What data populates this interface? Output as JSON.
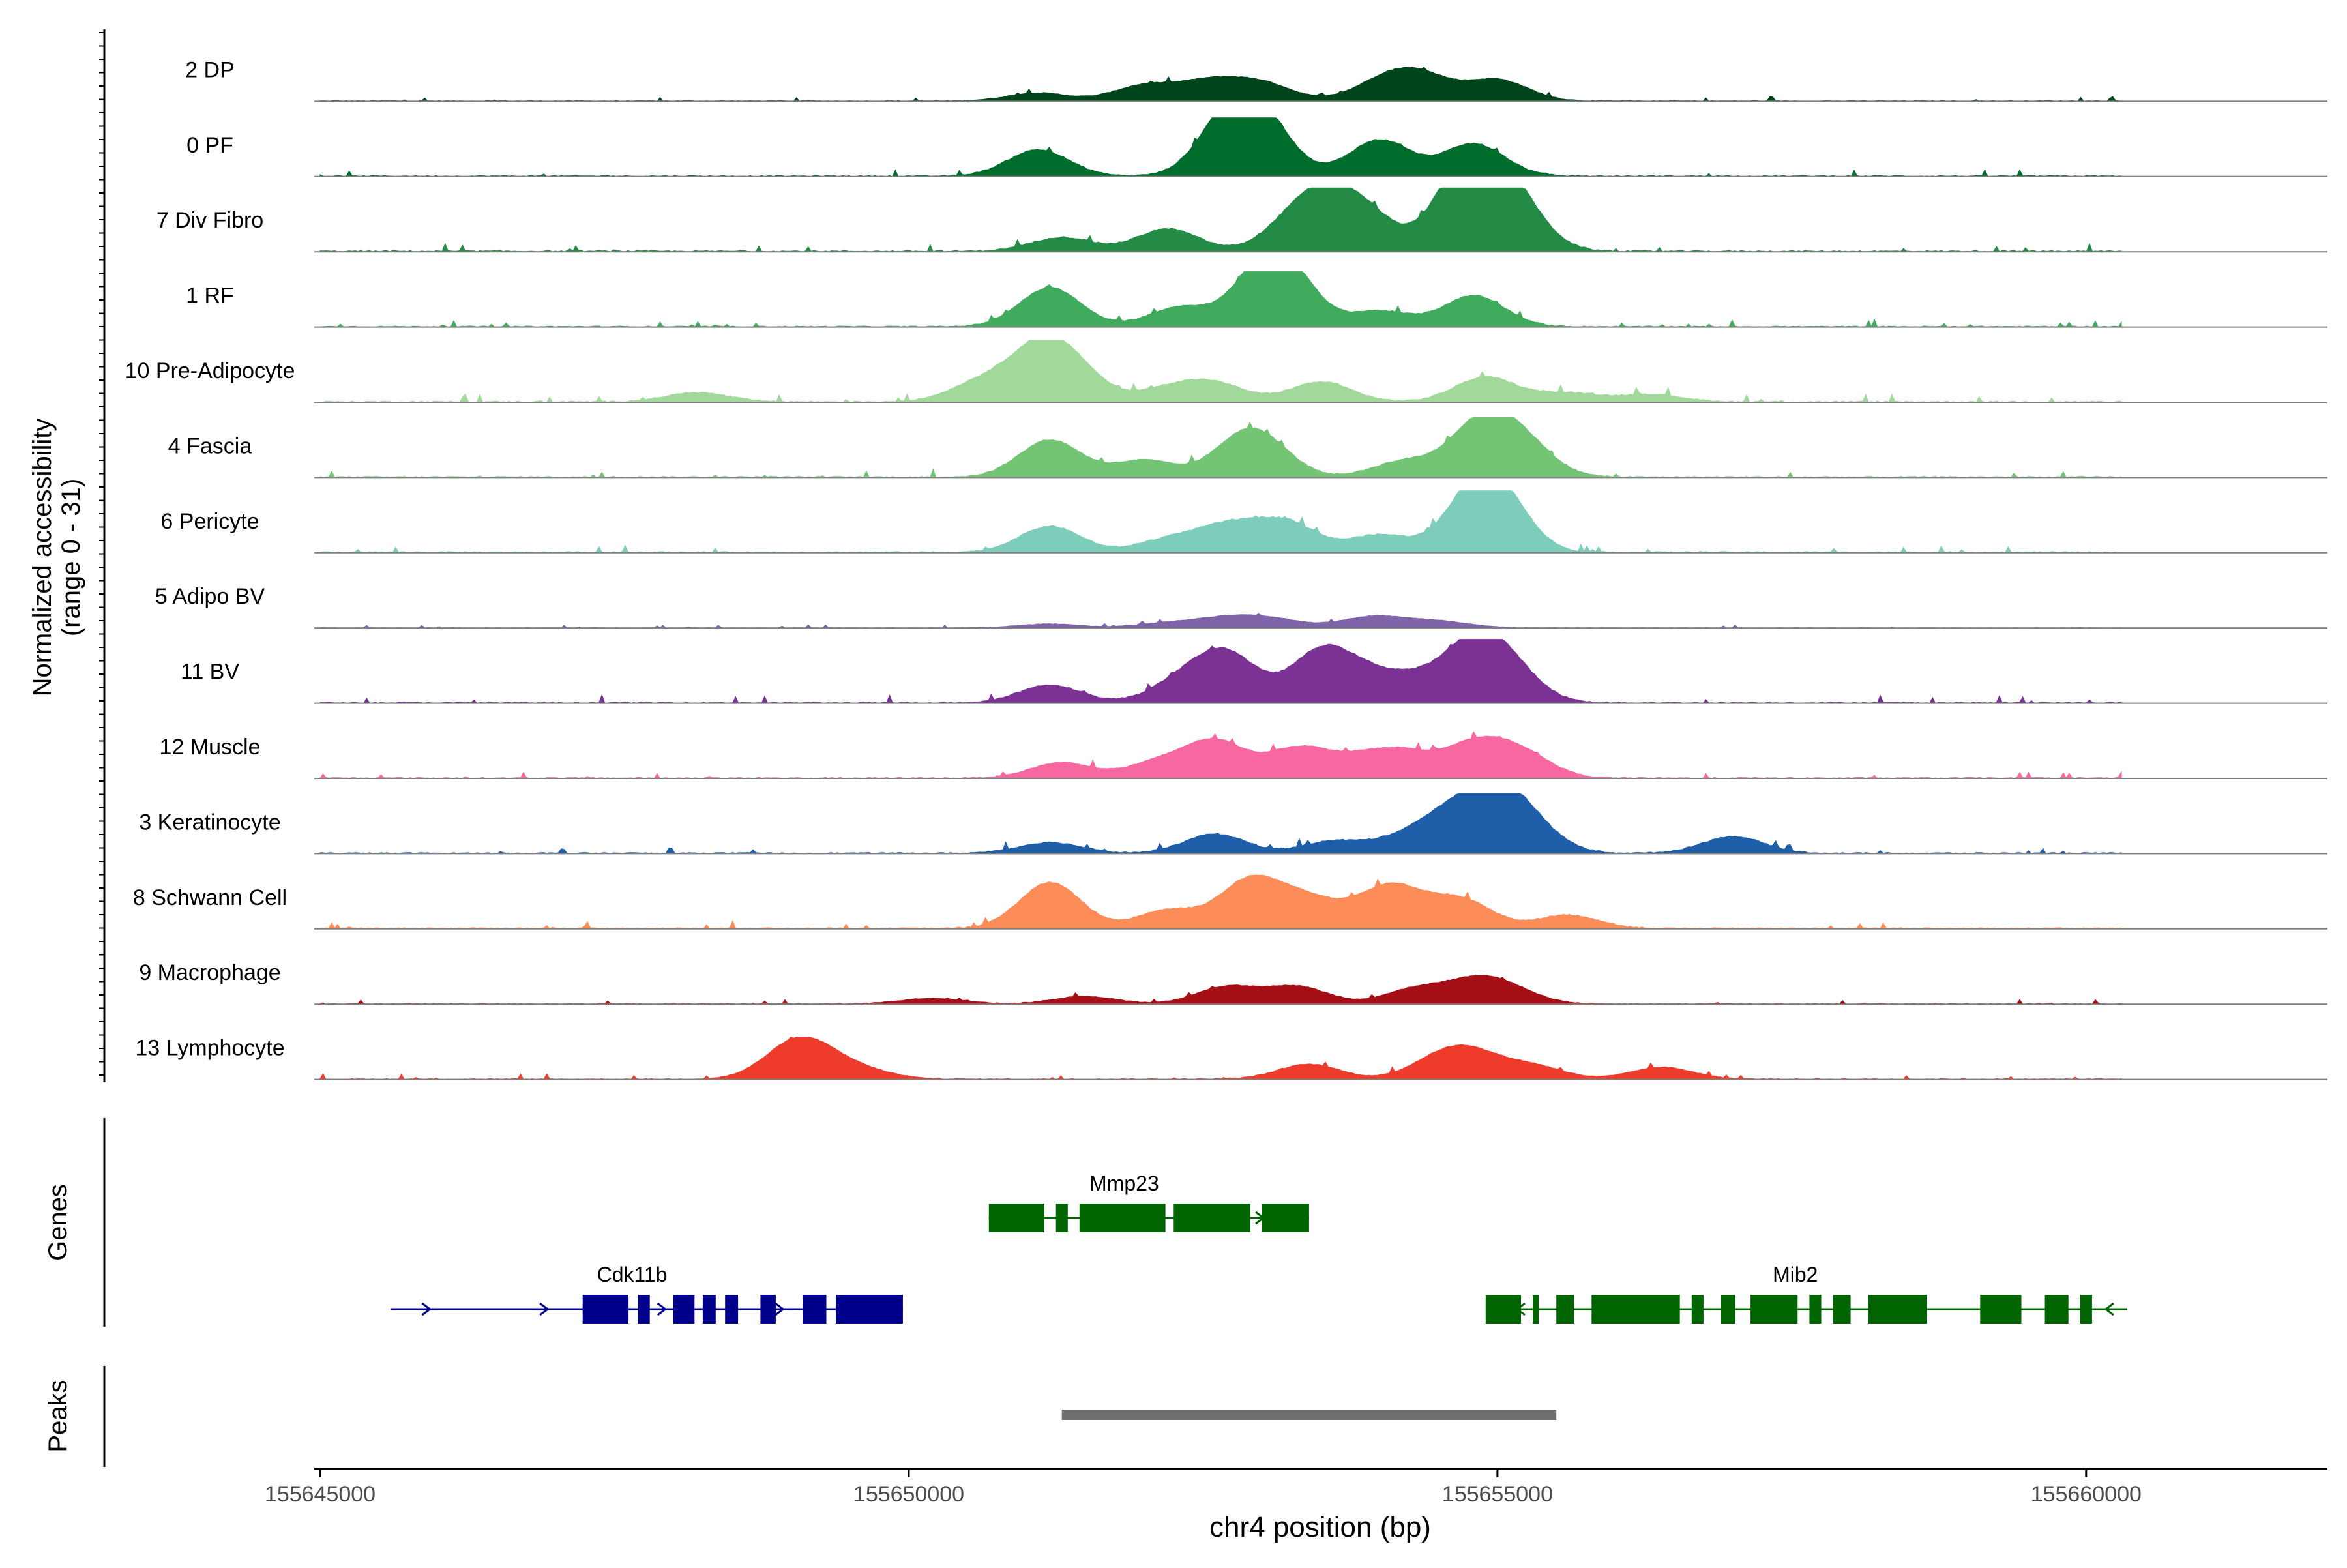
{
  "chart_data": {
    "type": "area",
    "title": "",
    "y_axis_label_line1": "Normalized accessibility",
    "y_axis_label_line2": "(range 0 - 31)",
    "genes_panel_label": "Genes",
    "peaks_panel_label": "Peaks",
    "xlabel": "chr4 position (bp)",
    "xlim": [
      155644950,
      155662050
    ],
    "x_ticks": [
      155645000,
      155650000,
      155655000,
      155660000
    ],
    "x_tick_labels": [
      "155645000",
      "155650000",
      "155655000",
      "155660000"
    ],
    "tracks": [
      {
        "name": "2 DP",
        "color": "#00441b",
        "max": 0.62,
        "peaks": [
          [
            155655000,
            0.52
          ],
          [
            155652000,
            0.38
          ],
          [
            155653000,
            0.42
          ],
          [
            155654000,
            0.36
          ],
          [
            155654400,
            0.35
          ],
          [
            155652550,
            0.45
          ],
          [
            155651100,
            0.2
          ],
          [
            155654250,
            0.3
          ]
        ]
      },
      {
        "name": "0 PF",
        "color": "#006d2c",
        "max": 0.9,
        "peaks": [
          [
            155653000,
            0.75
          ],
          [
            155654000,
            0.62
          ],
          [
            155654800,
            0.55
          ],
          [
            155652700,
            0.6
          ],
          [
            155651100,
            0.45
          ],
          [
            155652800,
            0.4
          ]
        ]
      },
      {
        "name": "7 Div Fibro",
        "color": "#238b45",
        "max": 0.98,
        "peaks": [
          [
            155654850,
            0.85
          ],
          [
            155654700,
            0.76
          ],
          [
            155655150,
            0.65
          ],
          [
            155653600,
            0.6
          ],
          [
            155652200,
            0.35
          ],
          [
            155653300,
            0.5
          ],
          [
            155653900,
            0.45
          ],
          [
            155651300,
            0.22
          ]
        ]
      },
      {
        "name": "1 RF",
        "color": "#41ab5d",
        "max": 0.85,
        "peaks": [
          [
            155653200,
            0.8
          ],
          [
            155653000,
            0.75
          ],
          [
            155651200,
            0.7
          ],
          [
            155654800,
            0.56
          ],
          [
            155652300,
            0.35
          ],
          [
            155654000,
            0.28
          ]
        ]
      },
      {
        "name": "10 Pre-Adipocyte",
        "color": "#a1d99b",
        "max": 0.95,
        "peaks": [
          [
            155651100,
            0.78
          ],
          [
            155651400,
            0.45
          ],
          [
            155654900,
            0.4
          ],
          [
            155653500,
            0.32
          ],
          [
            155650600,
            0.3
          ],
          [
            155652600,
            0.28
          ],
          [
            155652200,
            0.2
          ],
          [
            155648200,
            0.15
          ],
          [
            155655600,
            0.14
          ],
          [
            155656300,
            0.12
          ]
        ]
      },
      {
        "name": "4 Fascia",
        "color": "#74c476",
        "max": 0.92,
        "peaks": [
          [
            155654850,
            0.85
          ],
          [
            155655200,
            0.55
          ],
          [
            155653000,
            0.48
          ],
          [
            155651200,
            0.62
          ],
          [
            155652800,
            0.4
          ],
          [
            155652000,
            0.28
          ],
          [
            155654200,
            0.26
          ]
        ]
      },
      {
        "name": "6 Pericyte",
        "color": "#7ecdbb",
        "max": 0.95,
        "peaks": [
          [
            155655000,
            0.78
          ],
          [
            155654800,
            0.7
          ],
          [
            155653200,
            0.48
          ],
          [
            155651200,
            0.42
          ],
          [
            155652700,
            0.4
          ],
          [
            155654000,
            0.28
          ],
          [
            155652200,
            0.2
          ]
        ]
      },
      {
        "name": "5 Adipo BV",
        "color": "#8064aa",
        "max": 0.4,
        "peaks": [
          [
            155652700,
            0.35
          ],
          [
            155653100,
            0.3
          ],
          [
            155653900,
            0.24
          ],
          [
            155654500,
            0.25
          ],
          [
            155654000,
            0.2
          ],
          [
            155652200,
            0.18
          ],
          [
            155651200,
            0.15
          ]
        ]
      },
      {
        "name": "11 BV",
        "color": "#7b3294",
        "max": 0.98,
        "peaks": [
          [
            155654800,
            0.85
          ],
          [
            155653500,
            0.78
          ],
          [
            155652700,
            0.75
          ],
          [
            155655100,
            0.45
          ],
          [
            155653900,
            0.32
          ],
          [
            155652300,
            0.3
          ],
          [
            155654300,
            0.3
          ],
          [
            155651200,
            0.28
          ]
        ]
      },
      {
        "name": "12 Muscle",
        "color": "#f768a1",
        "max": 0.8,
        "peaks": [
          [
            155652600,
            0.7
          ],
          [
            155653300,
            0.55
          ],
          [
            155654800,
            0.6
          ],
          [
            155654200,
            0.45
          ],
          [
            155655200,
            0.45
          ],
          [
            155651300,
            0.3
          ],
          [
            155652100,
            0.28
          ],
          [
            155653800,
            0.3
          ]
        ]
      },
      {
        "name": "3 Keratinocyte",
        "color": "#1f5ea8",
        "max": 0.92,
        "peaks": [
          [
            155655000,
            0.92
          ],
          [
            155654600,
            0.55
          ],
          [
            155652600,
            0.32
          ],
          [
            155651200,
            0.18
          ],
          [
            155657000,
            0.28
          ],
          [
            155655300,
            0.3
          ],
          [
            155653600,
            0.2
          ],
          [
            155654200,
            0.22
          ]
        ]
      },
      {
        "name": "8 Schwann Cell",
        "color": "#fc8d59",
        "max": 0.94,
        "peaks": [
          [
            155651200,
            0.75
          ],
          [
            155652900,
            0.78
          ],
          [
            155653400,
            0.45
          ],
          [
            155654000,
            0.4
          ],
          [
            155654700,
            0.45
          ],
          [
            155654200,
            0.35
          ],
          [
            155652200,
            0.3
          ],
          [
            155655600,
            0.22
          ]
        ]
      },
      {
        "name": "9 Macrophage",
        "color": "#a50f15",
        "max": 0.58,
        "peaks": [
          [
            155654800,
            0.52
          ],
          [
            155653300,
            0.45
          ],
          [
            155652700,
            0.45
          ],
          [
            155654300,
            0.38
          ],
          [
            155655100,
            0.32
          ],
          [
            155651500,
            0.2
          ],
          [
            155650200,
            0.15
          ]
        ]
      },
      {
        "name": "13 Lymphocyte",
        "color": "#ef3b2c",
        "max": 0.65,
        "peaks": [
          [
            155649000,
            0.6
          ],
          [
            155649200,
            0.45
          ],
          [
            155654800,
            0.5
          ],
          [
            155654500,
            0.42
          ],
          [
            155653400,
            0.35
          ],
          [
            155655300,
            0.3
          ],
          [
            155656400,
            0.28
          ],
          [
            155649600,
            0.2
          ]
        ]
      }
    ],
    "genes": [
      {
        "name": "Mmp23",
        "color": "#006400",
        "strand": "+",
        "start": 155650680,
        "end": 155653400,
        "exons": [
          [
            155650680,
            155651150
          ],
          [
            155651250,
            155651350
          ],
          [
            155651450,
            155652180
          ],
          [
            155652250,
            155652900
          ],
          [
            155653000,
            155653400
          ]
        ]
      },
      {
        "name": "Cdk11b",
        "color": "#00008b",
        "strand": "+",
        "start": 155645600,
        "end": 155649950,
        "exons": [
          [
            155647230,
            155647620
          ],
          [
            155647700,
            155647800
          ],
          [
            155648000,
            155648180
          ],
          [
            155648250,
            155648360
          ],
          [
            155648440,
            155648550
          ],
          [
            155648740,
            155648870
          ],
          [
            155649100,
            155649300
          ],
          [
            155649380,
            155649950
          ]
        ]
      },
      {
        "name": "Mib2",
        "color": "#006400",
        "strand": "-",
        "start": 155654900,
        "end": 155660350,
        "exons": [
          [
            155654900,
            155655200
          ],
          [
            155655300,
            155655350
          ],
          [
            155655500,
            155655650
          ],
          [
            155655800,
            155656550
          ],
          [
            155656650,
            155656750
          ],
          [
            155656900,
            155657020
          ],
          [
            155657150,
            155657550
          ],
          [
            155657650,
            155657750
          ],
          [
            155657850,
            155658000
          ],
          [
            155658150,
            155658650
          ],
          [
            155659100,
            155659450
          ],
          [
            155659650,
            155659850
          ],
          [
            155659950,
            155660050
          ]
        ]
      }
    ],
    "peaks_region": [
      [
        155651300,
        155655500
      ]
    ]
  }
}
